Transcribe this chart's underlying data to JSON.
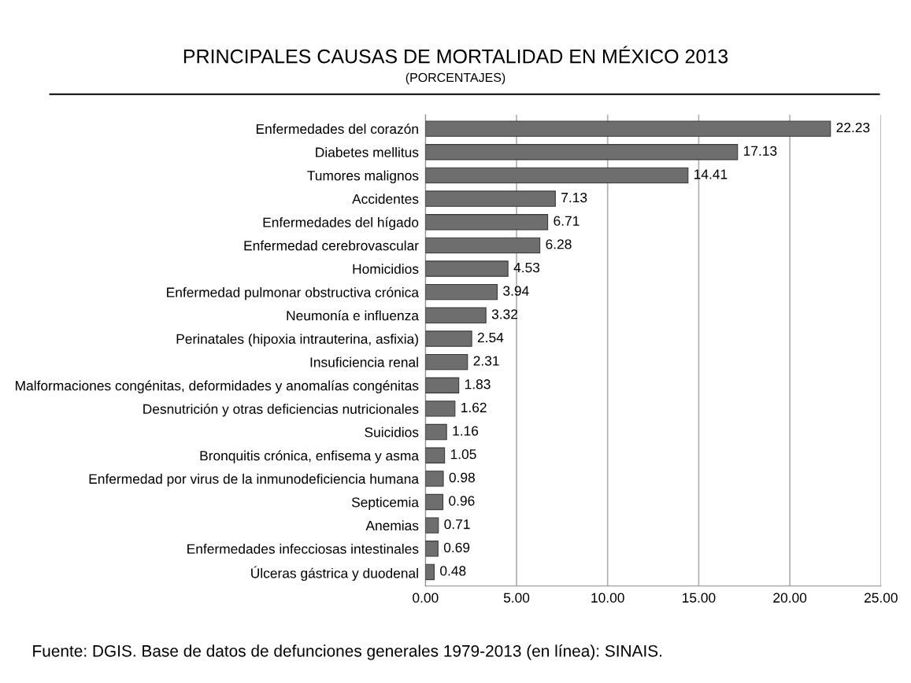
{
  "chart_data": {
    "type": "bar",
    "orientation": "horizontal",
    "title": "PRINCIPALES CAUSAS DE MORTALIDAD EN MÉXICO 2013",
    "subtitle": "(PORCENTAJES)",
    "categories": [
      "Enfermedades del corazón",
      "Diabetes mellitus",
      "Tumores malignos",
      "Accidentes",
      "Enfermedades del hígado",
      "Enfermedad cerebrovascular",
      "Homicidios",
      "Enfermedad pulmonar obstructiva crónica",
      "Neumonía e influenza",
      "Perinatales (hipoxia intrauterina, asfixia)",
      "Insuficiencia renal",
      "Malformaciones congénitas, deformidades y anomalías congénitas",
      "Desnutrición y otras deficiencias nutricionales",
      "Suicidios",
      "Bronquitis crónica, enfisema y asma",
      "Enfermedad por virus de la inmunodeficiencia humana",
      "Septicemia",
      "Anemias",
      "Enfermedades infecciosas intestinales",
      "Úlceras gástrica y duodenal"
    ],
    "values": [
      22.23,
      17.13,
      14.41,
      7.13,
      6.71,
      6.28,
      4.53,
      3.94,
      3.32,
      2.54,
      2.31,
      1.83,
      1.62,
      1.16,
      1.05,
      0.98,
      0.96,
      0.71,
      0.69,
      0.48
    ],
    "color": "#6e6e6e",
    "data_labels": true,
    "xlim": [
      0,
      25
    ],
    "xticks": [
      {
        "value": 0,
        "label": "0.00"
      },
      {
        "value": 5,
        "label": "5.00"
      },
      {
        "value": 10,
        "label": "10.00"
      },
      {
        "value": 15,
        "label": "15.00"
      },
      {
        "value": 20,
        "label": "20.00"
      },
      {
        "value": 25,
        "label": "25.00"
      }
    ],
    "grid": "x",
    "annotations": [
      "Fuente: DGIS. Base de datos de defunciones generales 1979-2013 (en línea): SINAIS."
    ]
  }
}
